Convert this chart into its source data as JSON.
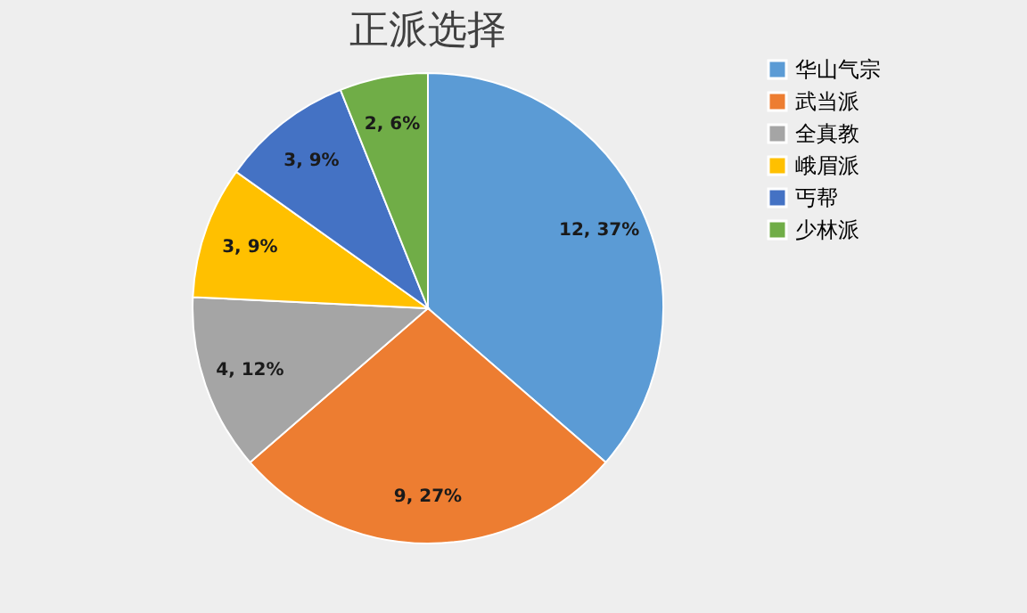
{
  "chart_data": {
    "type": "pie",
    "title": "正派选择",
    "categories": [
      "华山气宗",
      "武当派",
      "全真教",
      "峨眉派",
      "丐帮",
      "少林派"
    ],
    "values": [
      12,
      9,
      4,
      3,
      3,
      2
    ],
    "colors": [
      "#5b9bd5",
      "#ed7d31",
      "#a5a5a5",
      "#ffc000",
      "#4472c4",
      "#70ad47"
    ],
    "value_labels": [
      "12, 37%",
      "9, 27%",
      "4, 12%",
      "3, 9%",
      "3, 9%",
      "2, 6%"
    ],
    "legend": "right"
  }
}
